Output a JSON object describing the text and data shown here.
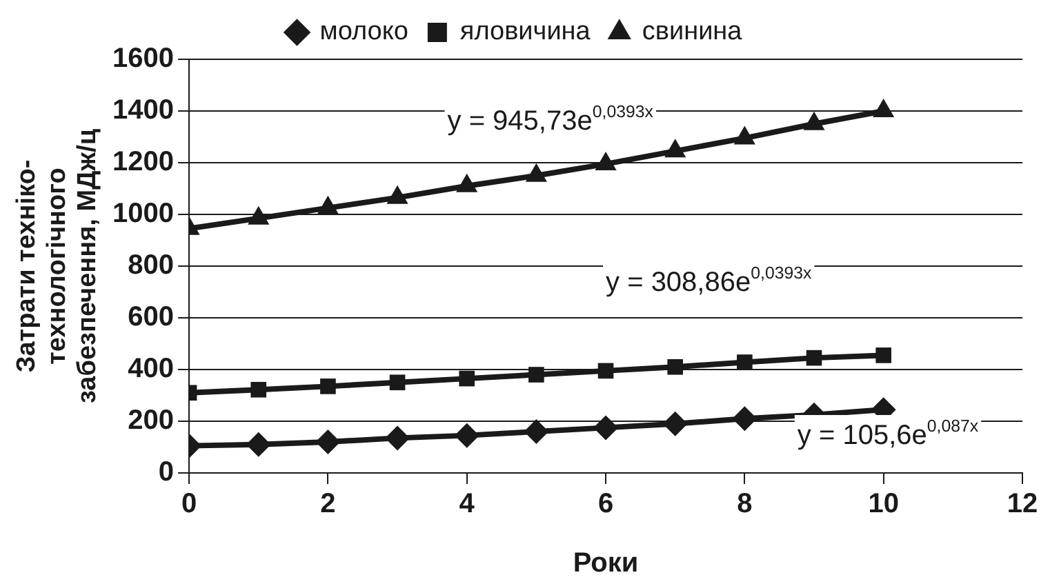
{
  "chart_data": {
    "type": "line",
    "xlabel": "Роки",
    "ylabel": "Затрати техніко-\nтехнологічного\nзабезпечення, МДж/ц",
    "x": [
      0,
      1,
      2,
      3,
      4,
      5,
      6,
      7,
      8,
      9,
      10
    ],
    "series": [
      {
        "name": "молоко",
        "color": "#1a1a1a",
        "marker": "diamond",
        "values": [
          105,
          110,
          120,
          135,
          145,
          160,
          175,
          190,
          210,
          225,
          245
        ]
      },
      {
        "name": "яловичина",
        "color": "#1a1a1a",
        "marker": "square",
        "values": [
          310,
          322,
          335,
          350,
          365,
          380,
          395,
          410,
          428,
          445,
          455
        ]
      },
      {
        "name": "свинина",
        "color": "#1a1a1a",
        "marker": "triangle",
        "values": [
          945,
          985,
          1025,
          1065,
          1110,
          1150,
          1195,
          1245,
          1295,
          1350,
          1400
        ]
      }
    ],
    "annotations": [
      "y = 945,73e$^{0,0393x}$",
      "y = 308,86e$^{0,0393x}$",
      "y = 105,6e$^{0,087x}$"
    ],
    "xlim": [
      0,
      12
    ],
    "xticks": [
      0,
      2,
      4,
      6,
      8,
      10,
      12
    ],
    "ylim": [
      0,
      1600
    ],
    "yticks": [
      0,
      200,
      400,
      600,
      800,
      1000,
      1200,
      1400,
      1600
    ],
    "grid": "y",
    "legend": "top",
    "line_style": "solid"
  }
}
